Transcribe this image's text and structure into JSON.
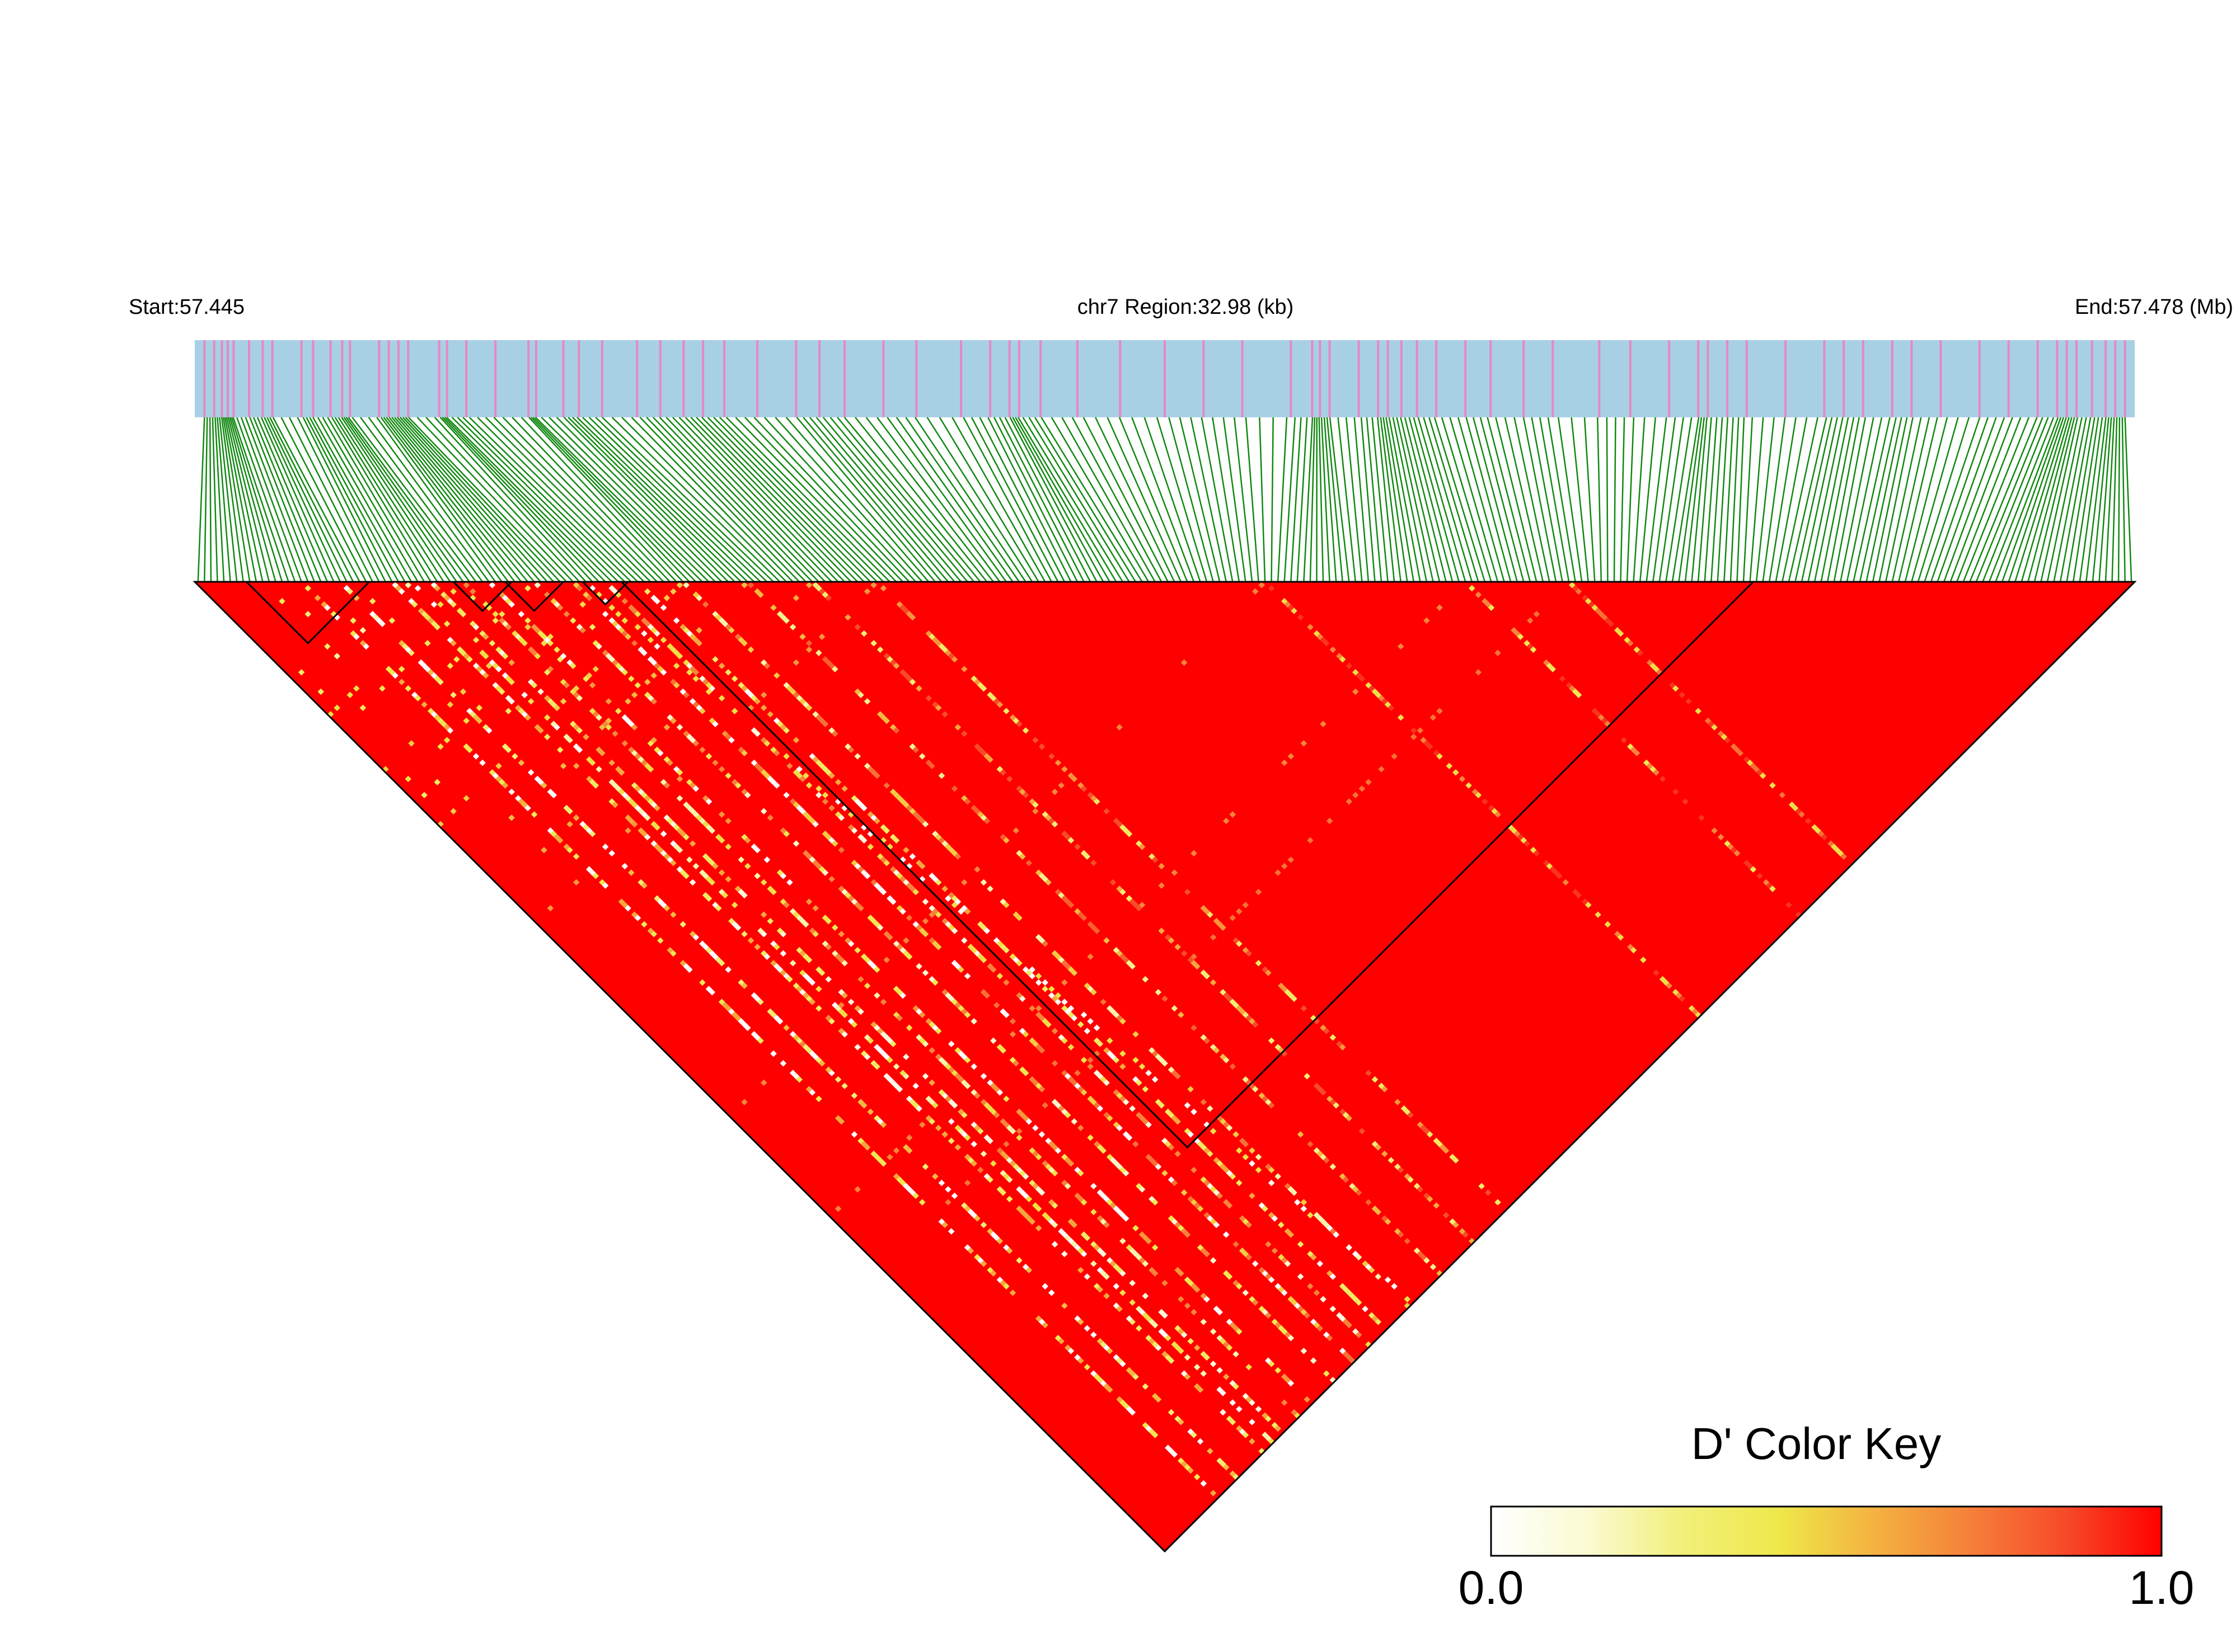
{
  "header": {
    "start_label": "Start:57.445",
    "region_label": "chr7 Region:32.98 (kb)",
    "end_label": "End:57.478 (Mb)"
  },
  "legend": {
    "title": "D' Color Key",
    "min_label": "0.0",
    "max_label": "1.0",
    "placement": "bottom-right",
    "gradient": [
      "#ffffff",
      "#fafad2",
      "#f2ef7a",
      "#eee84a",
      "#f4b240",
      "#f5803a",
      "#f64a28",
      "#ff0000"
    ]
  },
  "colors": {
    "track_bg": "#a8d0e4",
    "track_snp": "#e688c2",
    "connector": "#118811",
    "heat_high": "#ff0000",
    "heat_mid": "#f7a334",
    "heat_low": "#f8e550",
    "heat_none": "#ffffff",
    "block_outline": "#000000"
  },
  "chart_data": {
    "type": "heatmap",
    "subtype": "LD triangle (D')",
    "chromosome": "chr7",
    "region_start_mb": 57.445,
    "region_end_mb": 57.478,
    "region_span_kb": 32.98,
    "metric": "D'",
    "value_range": [
      0.0,
      1.0
    ],
    "snp_count": 300,
    "snp_positions_relative": [
      0.005,
      0.01,
      0.014,
      0.017,
      0.02,
      0.028,
      0.035,
      0.04,
      0.055,
      0.061,
      0.07,
      0.076,
      0.08,
      0.095,
      0.1,
      0.105,
      0.11,
      0.126,
      0.13,
      0.14,
      0.155,
      0.172,
      0.176,
      0.19,
      0.198,
      0.21,
      0.228,
      0.24,
      0.252,
      0.262,
      0.273,
      0.29,
      0.31,
      0.322,
      0.335,
      0.355,
      0.372,
      0.395,
      0.41,
      0.42,
      0.425,
      0.436,
      0.455,
      0.477,
      0.5,
      0.52,
      0.54,
      0.565,
      0.576,
      0.58,
      0.585,
      0.6,
      0.61,
      0.615,
      0.622,
      0.63,
      0.64,
      0.655,
      0.668,
      0.685,
      0.7,
      0.724,
      0.74,
      0.76,
      0.775,
      0.78,
      0.79,
      0.8,
      0.82,
      0.84,
      0.85,
      0.86,
      0.875,
      0.885,
      0.9,
      0.92,
      0.935,
      0.95,
      0.96,
      0.965,
      0.97,
      0.978,
      0.985,
      0.99,
      0.995
    ],
    "ld_blocks": [
      {
        "first_snp": 8,
        "last_snp": 26,
        "mean_d": 0.95
      },
      {
        "first_snp": 40,
        "last_snp": 48,
        "mean_d": 0.9
      },
      {
        "first_snp": 48,
        "last_snp": 56,
        "mean_d": 0.88
      },
      {
        "first_snp": 60,
        "last_snp": 66,
        "mean_d": 0.92
      },
      {
        "first_snp": 66,
        "last_snp": 240,
        "mean_d": 0.97
      }
    ],
    "low_ld_streaks": [
      {
        "snp": 16,
        "d_values": [
          0.0,
          0.4,
          0.6
        ]
      },
      {
        "snp": 22,
        "d_values": [
          0.0,
          0.3,
          0.55
        ]
      },
      {
        "snp": 30,
        "d_values": [
          0.05,
          0.35,
          0.6
        ]
      },
      {
        "snp": 33,
        "d_values": [
          0.0,
          0.2,
          0.45
        ]
      },
      {
        "snp": 36,
        "d_values": [
          0.1,
          0.35,
          0.6
        ]
      },
      {
        "snp": 41,
        "d_values": [
          0.2,
          0.45,
          0.7
        ]
      },
      {
        "snp": 45,
        "d_values": [
          0.0,
          0.4,
          0.65
        ]
      },
      {
        "snp": 52,
        "d_values": [
          0.15,
          0.4,
          0.7
        ]
      },
      {
        "snp": 58,
        "d_values": [
          0.0,
          0.5,
          0.75
        ]
      },
      {
        "snp": 63,
        "d_values": [
          0.1,
          0.45,
          0.7
        ]
      },
      {
        "snp": 68,
        "d_values": [
          0.0,
          0.35,
          0.6
        ]
      },
      {
        "snp": 75,
        "d_values": [
          0.2,
          0.5,
          0.75
        ]
      },
      {
        "snp": 85,
        "d_values": [
          0.25,
          0.55,
          0.8
        ]
      },
      {
        "snp": 95,
        "d_values": [
          0.3,
          0.6,
          0.85
        ]
      },
      {
        "snp": 105,
        "d_values": [
          0.35,
          0.65,
          0.85
        ]
      },
      {
        "snp": 165,
        "d_values": [
          0.45,
          0.7,
          0.9
        ]
      },
      {
        "snp": 196,
        "d_values": [
          0.4,
          0.7,
          0.9
        ]
      },
      {
        "snp": 212,
        "d_values": [
          0.45,
          0.75,
          0.9
        ]
      }
    ]
  }
}
